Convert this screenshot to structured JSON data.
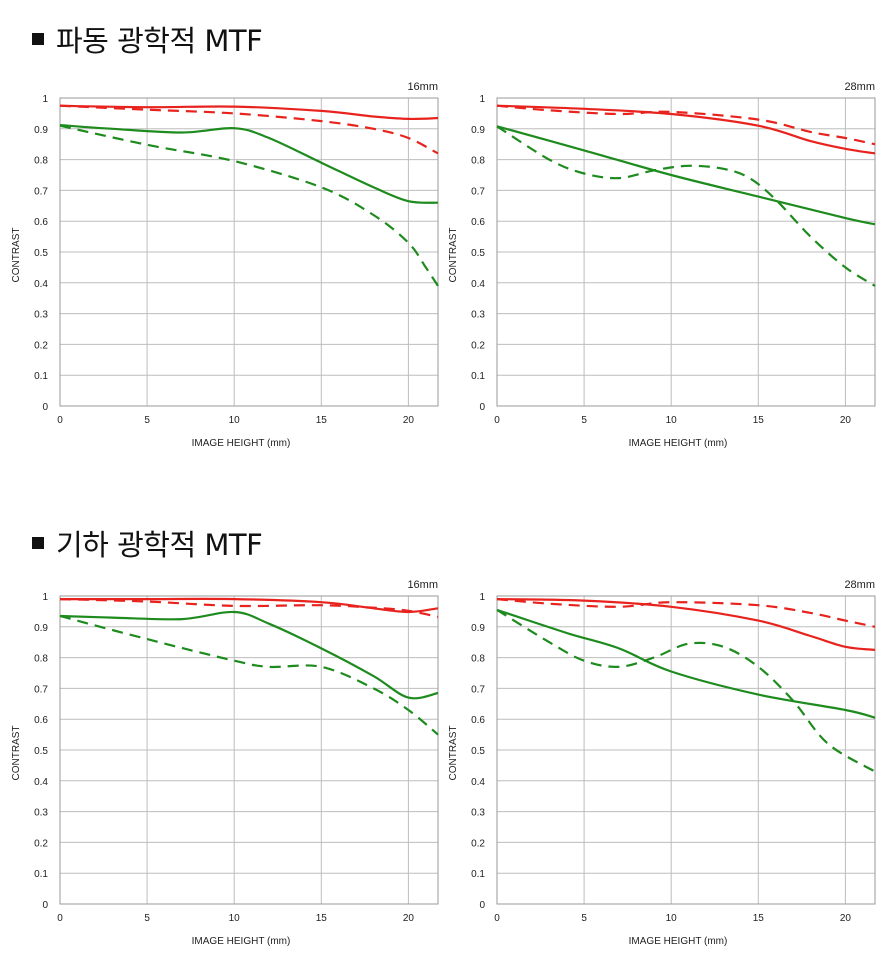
{
  "sections": [
    {
      "title": "파동 광학적 MTF",
      "charts": [
        {
          "focal": "16mm",
          "ylabel": "CONTRAST",
          "xlabel": "IMAGE HEIGHT (mm)",
          "xlim": [
            0,
            21.7
          ],
          "ylim": [
            0,
            1
          ],
          "xticks": [
            "0",
            "5",
            "10",
            "15",
            "20"
          ],
          "yticks": [
            "0",
            "0.1",
            "0.2",
            "0.3",
            "0.4",
            "0.5",
            "0.6",
            "0.7",
            "0.8",
            "0.9",
            "1"
          ],
          "series": [
            {
              "color": "#e8231e",
              "style": "solid",
              "x": [
                0,
                5,
                10,
                15,
                18,
                20,
                21.7
              ],
              "y": [
                0.975,
                0.97,
                0.972,
                0.958,
                0.94,
                0.932,
                0.935
              ]
            },
            {
              "color": "#e8231e",
              "style": "dashed",
              "x": [
                0,
                5,
                10,
                15,
                18,
                20,
                21.7
              ],
              "y": [
                0.975,
                0.962,
                0.95,
                0.925,
                0.9,
                0.87,
                0.82
              ]
            },
            {
              "color": "#1e8b1e",
              "style": "solid",
              "x": [
                0,
                3,
                7,
                10,
                12,
                15,
                18,
                20,
                21.7
              ],
              "y": [
                0.912,
                0.9,
                0.888,
                0.902,
                0.87,
                0.79,
                0.71,
                0.665,
                0.66
              ]
            },
            {
              "color": "#1e8b1e",
              "style": "dashed",
              "x": [
                0,
                5,
                10,
                15,
                18,
                20,
                21,
                21.7
              ],
              "y": [
                0.91,
                0.848,
                0.795,
                0.71,
                0.62,
                0.53,
                0.45,
                0.39
              ]
            }
          ]
        },
        {
          "focal": "28mm",
          "ylabel": "CONTRAST",
          "xlabel": "IMAGE HEIGHT (mm)",
          "xlim": [
            0,
            21.7
          ],
          "ylim": [
            0,
            1
          ],
          "xticks": [
            "0",
            "5",
            "10",
            "15",
            "20"
          ],
          "yticks": [
            "0",
            "0.1",
            "0.2",
            "0.3",
            "0.4",
            "0.5",
            "0.6",
            "0.7",
            "0.8",
            "0.9",
            "1"
          ],
          "series": [
            {
              "color": "#e8231e",
              "style": "solid",
              "x": [
                0,
                5,
                10,
                15,
                18,
                20,
                21.7
              ],
              "y": [
                0.975,
                0.965,
                0.948,
                0.91,
                0.86,
                0.835,
                0.82
              ]
            },
            {
              "color": "#e8231e",
              "style": "dashed",
              "x": [
                0,
                3,
                7,
                10,
                15,
                18,
                20,
                21.7
              ],
              "y": [
                0.975,
                0.96,
                0.948,
                0.955,
                0.93,
                0.89,
                0.87,
                0.85
              ]
            },
            {
              "color": "#1e8b1e",
              "style": "solid",
              "x": [
                0,
                5,
                10,
                15,
                20,
                21.7
              ],
              "y": [
                0.908,
                0.83,
                0.75,
                0.68,
                0.61,
                0.59
              ]
            },
            {
              "color": "#1e8b1e",
              "style": "dashed",
              "x": [
                0,
                3,
                5,
                7,
                9,
                11,
                13,
                14.5,
                16,
                18,
                20,
                21.7
              ],
              "y": [
                0.908,
                0.8,
                0.755,
                0.74,
                0.765,
                0.78,
                0.77,
                0.74,
                0.67,
                0.55,
                0.45,
                0.39
              ]
            }
          ]
        }
      ]
    },
    {
      "title": "기하 광학적 MTF",
      "charts": [
        {
          "focal": "16mm",
          "ylabel": "CONTRAST",
          "xlabel": "IMAGE HEIGHT (mm)",
          "xlim": [
            0,
            21.7
          ],
          "ylim": [
            0,
            1
          ],
          "xticks": [
            "0",
            "5",
            "10",
            "15",
            "20"
          ],
          "yticks": [
            "0",
            "0.1",
            "0.2",
            "0.3",
            "0.4",
            "0.5",
            "0.6",
            "0.7",
            "0.8",
            "0.9",
            "1"
          ],
          "series": [
            {
              "color": "#e8231e",
              "style": "solid",
              "x": [
                0,
                5,
                10,
                15,
                18,
                20,
                21.7
              ],
              "y": [
                0.99,
                0.99,
                0.99,
                0.98,
                0.96,
                0.948,
                0.96
              ]
            },
            {
              "color": "#e8231e",
              "style": "dashed",
              "x": [
                0,
                5,
                10,
                15,
                18,
                20,
                21.7
              ],
              "y": [
                0.99,
                0.982,
                0.968,
                0.97,
                0.962,
                0.952,
                0.932
              ]
            },
            {
              "color": "#1e8b1e",
              "style": "solid",
              "x": [
                0,
                3,
                7,
                10,
                12,
                15,
                18,
                20,
                21.7
              ],
              "y": [
                0.935,
                0.93,
                0.925,
                0.948,
                0.91,
                0.83,
                0.74,
                0.67,
                0.685
              ]
            },
            {
              "color": "#1e8b1e",
              "style": "dashed",
              "x": [
                0,
                5,
                10,
                12,
                15,
                18,
                20,
                21.7
              ],
              "y": [
                0.935,
                0.86,
                0.79,
                0.77,
                0.77,
                0.7,
                0.63,
                0.55
              ]
            }
          ]
        },
        {
          "focal": "28mm",
          "ylabel": "CONTRAST",
          "xlabel": "IMAGE HEIGHT (mm)",
          "xlim": [
            0,
            21.7
          ],
          "ylim": [
            0,
            1
          ],
          "xticks": [
            "0",
            "5",
            "10",
            "15",
            "20"
          ],
          "yticks": [
            "0",
            "0.1",
            "0.2",
            "0.3",
            "0.4",
            "0.5",
            "0.6",
            "0.7",
            "0.8",
            "0.9",
            "1"
          ],
          "series": [
            {
              "color": "#e8231e",
              "style": "solid",
              "x": [
                0,
                5,
                10,
                15,
                18,
                20,
                21.7
              ],
              "y": [
                0.99,
                0.985,
                0.965,
                0.92,
                0.87,
                0.835,
                0.825
              ]
            },
            {
              "color": "#e8231e",
              "style": "dashed",
              "x": [
                0,
                3,
                7,
                10,
                15,
                18,
                20,
                21.7
              ],
              "y": [
                0.99,
                0.975,
                0.965,
                0.98,
                0.97,
                0.945,
                0.92,
                0.9
              ]
            },
            {
              "color": "#1e8b1e",
              "style": "solid",
              "x": [
                0,
                4,
                7,
                10,
                15,
                20,
                21.7
              ],
              "y": [
                0.955,
                0.88,
                0.83,
                0.755,
                0.68,
                0.63,
                0.605
              ]
            },
            {
              "color": "#1e8b1e",
              "style": "dashed",
              "x": [
                0,
                3,
                5,
                7,
                9,
                11,
                13,
                15,
                17,
                19,
                21.7
              ],
              "y": [
                0.955,
                0.85,
                0.79,
                0.77,
                0.8,
                0.845,
                0.835,
                0.77,
                0.66,
                0.52,
                0.43
              ]
            }
          ]
        }
      ]
    }
  ]
}
